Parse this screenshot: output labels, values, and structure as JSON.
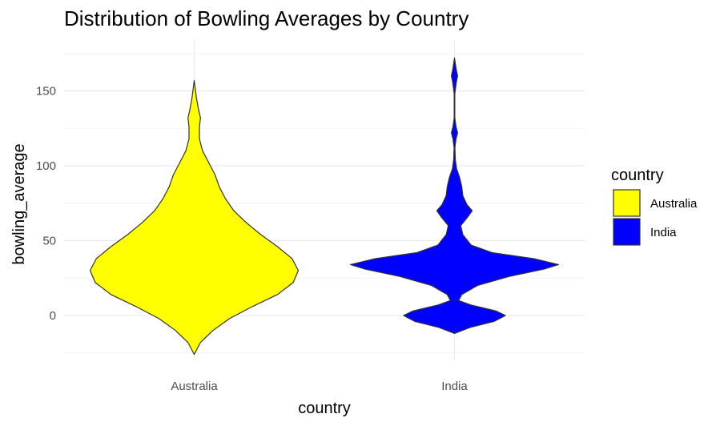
{
  "chart_data": {
    "type": "violin",
    "title": "Distribution of Bowling Averages by Country",
    "xlabel": "country",
    "ylabel": "bowling_average",
    "ylim": [
      -25,
      175
    ],
    "yticks": [
      0,
      50,
      100,
      150
    ],
    "grid": true,
    "legend": {
      "title": "country",
      "placement": "right"
    },
    "categories": [
      "Australia",
      "India"
    ],
    "series": [
      {
        "name": "Australia",
        "color": "#FFFF00",
        "range": [
          -26,
          157
        ],
        "density_profile": [
          [
            -26,
            0.0
          ],
          [
            -18,
            0.06
          ],
          [
            -10,
            0.18
          ],
          [
            -2,
            0.34
          ],
          [
            6,
            0.56
          ],
          [
            14,
            0.8
          ],
          [
            22,
            0.95
          ],
          [
            30,
            1.0
          ],
          [
            38,
            0.94
          ],
          [
            46,
            0.8
          ],
          [
            54,
            0.64
          ],
          [
            62,
            0.5
          ],
          [
            70,
            0.38
          ],
          [
            78,
            0.3
          ],
          [
            86,
            0.24
          ],
          [
            94,
            0.2
          ],
          [
            102,
            0.14
          ],
          [
            110,
            0.08
          ],
          [
            118,
            0.05
          ],
          [
            126,
            0.05
          ],
          [
            132,
            0.06
          ],
          [
            138,
            0.04
          ],
          [
            146,
            0.02
          ],
          [
            157,
            0.0
          ]
        ]
      },
      {
        "name": "India",
        "color": "#0000FF",
        "range": [
          -12,
          172
        ],
        "density_profile": [
          [
            -12,
            0.0
          ],
          [
            -8,
            0.15
          ],
          [
            -4,
            0.38
          ],
          [
            0,
            0.49
          ],
          [
            3,
            0.4
          ],
          [
            7,
            0.16
          ],
          [
            10,
            0.04
          ],
          [
            14,
            0.07
          ],
          [
            20,
            0.22
          ],
          [
            26,
            0.52
          ],
          [
            31,
            0.86
          ],
          [
            34,
            1.0
          ],
          [
            38,
            0.76
          ],
          [
            42,
            0.36
          ],
          [
            47,
            0.16
          ],
          [
            54,
            0.08
          ],
          [
            60,
            0.06
          ],
          [
            66,
            0.13
          ],
          [
            70,
            0.17
          ],
          [
            74,
            0.12
          ],
          [
            80,
            0.08
          ],
          [
            86,
            0.07
          ],
          [
            92,
            0.05
          ],
          [
            98,
            0.02
          ],
          [
            104,
            0.008
          ],
          [
            112,
            0.004
          ],
          [
            118,
            0.015
          ],
          [
            122,
            0.03
          ],
          [
            126,
            0.015
          ],
          [
            132,
            0.003
          ],
          [
            148,
            0.003
          ],
          [
            156,
            0.018
          ],
          [
            160,
            0.03
          ],
          [
            164,
            0.018
          ],
          [
            172,
            0.0
          ]
        ]
      }
    ]
  }
}
